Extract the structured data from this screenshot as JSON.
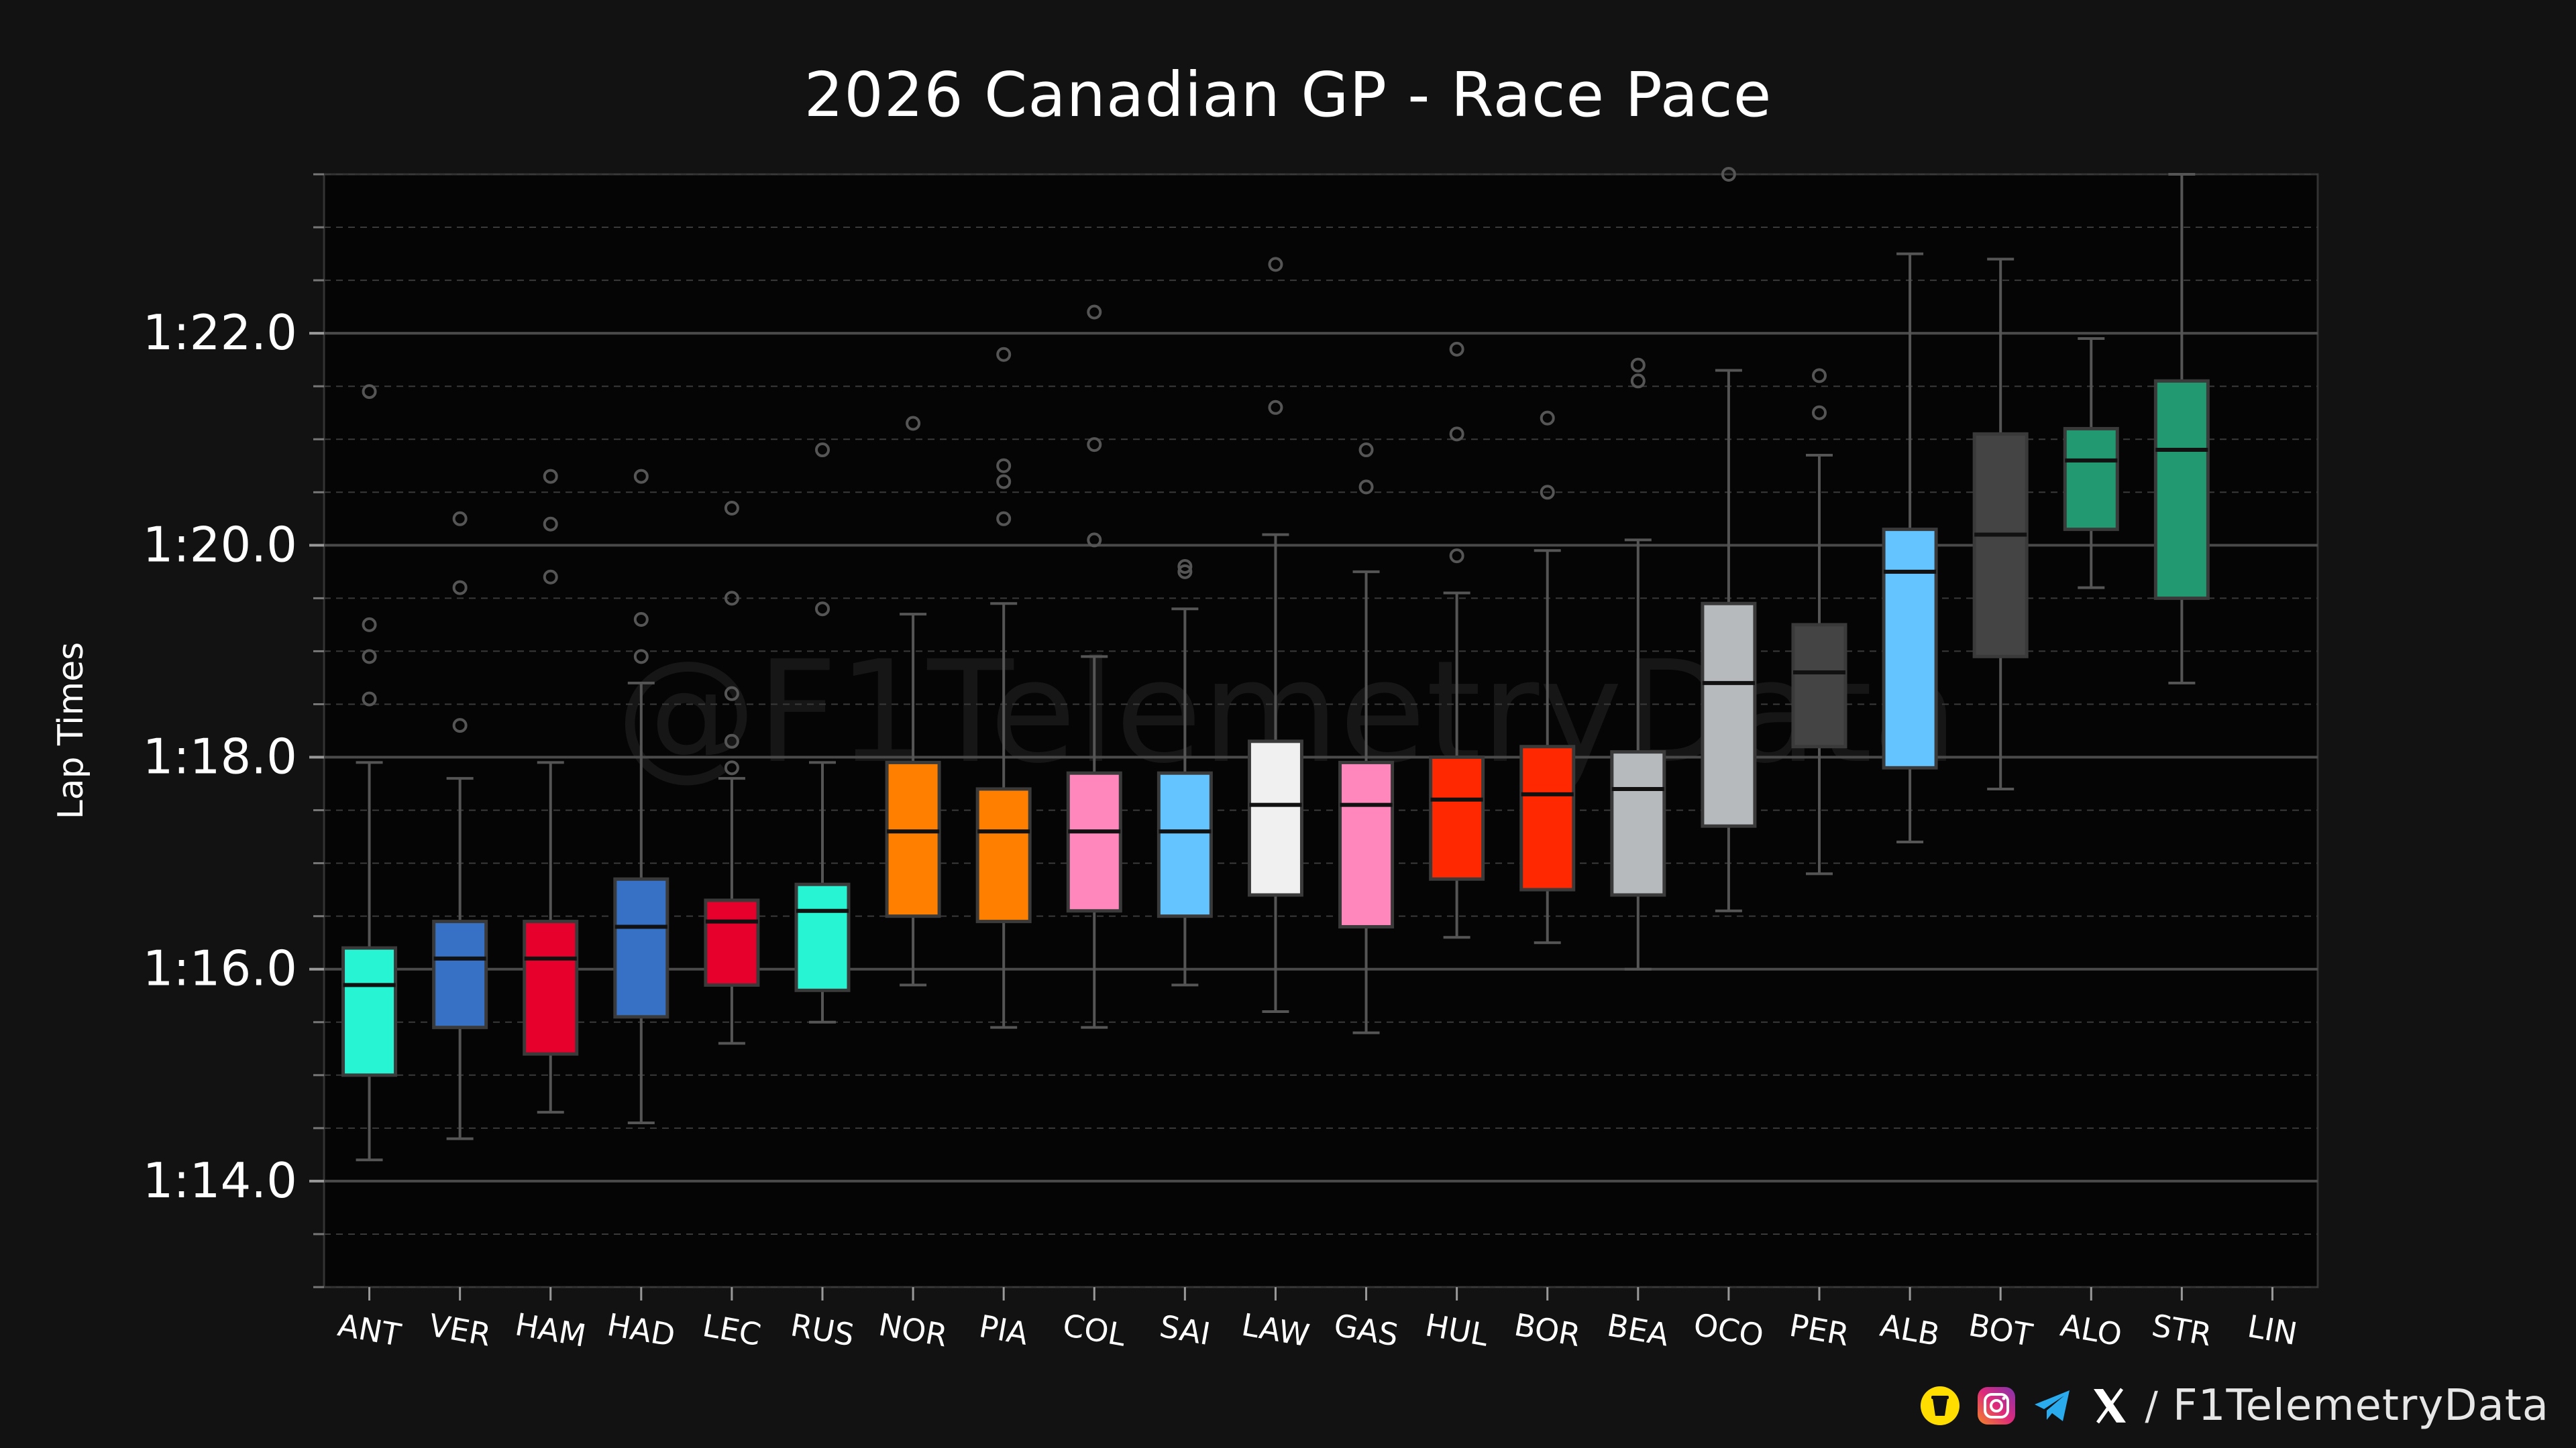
{
  "chart_data": {
    "type": "box",
    "title": "2026 Canadian GP - Race Pace",
    "xlabel": "",
    "ylabel": "Lap Times",
    "ylim": [
      73.0,
      83.5
    ],
    "ytick_values": [
      74,
      76,
      78,
      80,
      82
    ],
    "ytick_labels": [
      "1:14.0",
      "1:16.0",
      "1:18.0",
      "1:20.0",
      "1:22.0"
    ],
    "grid": true,
    "watermark": "@F1TelemetryData",
    "categories": [
      "ANT",
      "VER",
      "HAM",
      "HAD",
      "LEC",
      "RUS",
      "NOR",
      "PIA",
      "COL",
      "SAI",
      "LAW",
      "GAS",
      "HUL",
      "BOR",
      "BEA",
      "OCO",
      "PER",
      "ALB",
      "BOT",
      "ALO",
      "STR",
      "LIN"
    ],
    "boxes": [
      {
        "driver": "ANT",
        "color": "#27F4D2",
        "whislo": 74.2,
        "q1": 75.0,
        "med": 75.85,
        "q3": 76.2,
        "whishi": 77.95,
        "fliers": [
          78.55,
          78.95,
          79.25,
          81.45
        ]
      },
      {
        "driver": "VER",
        "color": "#3671C6",
        "whislo": 74.4,
        "q1": 75.45,
        "med": 76.1,
        "q3": 76.45,
        "whishi": 77.8,
        "fliers": [
          78.3,
          79.6,
          80.25
        ]
      },
      {
        "driver": "HAM",
        "color": "#E8002D",
        "whislo": 74.65,
        "q1": 75.2,
        "med": 76.1,
        "q3": 76.45,
        "whishi": 77.95,
        "fliers": [
          79.7,
          80.2,
          80.65
        ]
      },
      {
        "driver": "HAD",
        "color": "#3671C6",
        "whislo": 74.55,
        "q1": 75.55,
        "med": 76.4,
        "q3": 76.85,
        "whishi": 78.7,
        "fliers": [
          78.95,
          79.3,
          80.65
        ]
      },
      {
        "driver": "LEC",
        "color": "#E8002D",
        "whislo": 75.3,
        "q1": 75.85,
        "med": 76.45,
        "q3": 76.65,
        "whishi": 77.8,
        "fliers": [
          77.9,
          78.15,
          78.6,
          79.5,
          80.35
        ]
      },
      {
        "driver": "RUS",
        "color": "#27F4D2",
        "whislo": 75.5,
        "q1": 75.8,
        "med": 76.55,
        "q3": 76.8,
        "whishi": 77.95,
        "fliers": [
          79.4,
          80.9
        ]
      },
      {
        "driver": "NOR",
        "color": "#FF8000",
        "whislo": 75.85,
        "q1": 76.5,
        "med": 77.3,
        "q3": 77.95,
        "whishi": 79.35,
        "fliers": [
          81.15
        ]
      },
      {
        "driver": "PIA",
        "color": "#FF8000",
        "whislo": 75.45,
        "q1": 76.45,
        "med": 77.3,
        "q3": 77.7,
        "whishi": 79.45,
        "fliers": [
          80.25,
          80.6,
          80.75,
          81.8
        ]
      },
      {
        "driver": "COL",
        "color": "#FF87BC",
        "whislo": 75.45,
        "q1": 76.55,
        "med": 77.3,
        "q3": 77.85,
        "whishi": 78.95,
        "fliers": [
          80.05,
          80.95,
          82.2
        ]
      },
      {
        "driver": "SAI",
        "color": "#64C4FF",
        "whislo": 75.85,
        "q1": 76.5,
        "med": 77.3,
        "q3": 77.85,
        "whishi": 79.4,
        "fliers": [
          79.8,
          79.75
        ]
      },
      {
        "driver": "LAW",
        "color": "#F0F0F0",
        "whislo": 75.6,
        "q1": 76.7,
        "med": 77.55,
        "q3": 78.15,
        "whishi": 80.1,
        "fliers": [
          81.3,
          82.65
        ]
      },
      {
        "driver": "GAS",
        "color": "#FF87BC",
        "whislo": 75.4,
        "q1": 76.4,
        "med": 77.55,
        "q3": 77.95,
        "whishi": 79.75,
        "fliers": [
          80.55,
          80.9
        ]
      },
      {
        "driver": "HUL",
        "color": "#FF2800",
        "whislo": 76.3,
        "q1": 76.85,
        "med": 77.6,
        "q3": 78.0,
        "whishi": 79.55,
        "fliers": [
          79.9,
          81.05,
          81.85
        ]
      },
      {
        "driver": "BOR",
        "color": "#FF2800",
        "whislo": 76.25,
        "q1": 76.75,
        "med": 77.65,
        "q3": 78.1,
        "whishi": 79.95,
        "fliers": [
          80.5,
          81.2
        ]
      },
      {
        "driver": "BEA",
        "color": "#B6BABD",
        "whislo": 76.0,
        "q1": 76.7,
        "med": 77.7,
        "q3": 78.05,
        "whishi": 80.05,
        "fliers": [
          81.55,
          81.7
        ]
      },
      {
        "driver": "OCO",
        "color": "#B6BABD",
        "whislo": 76.55,
        "q1": 77.35,
        "med": 78.7,
        "q3": 79.45,
        "whishi": 81.65,
        "fliers": [
          83.5
        ]
      },
      {
        "driver": "PER",
        "color": "#444444",
        "whislo": 76.9,
        "q1": 78.1,
        "med": 78.8,
        "q3": 79.25,
        "whishi": 80.85,
        "fliers": [
          81.25,
          81.6
        ]
      },
      {
        "driver": "ALB",
        "color": "#64C4FF",
        "whislo": 77.2,
        "q1": 77.9,
        "med": 79.75,
        "q3": 80.15,
        "whishi": 82.75,
        "fliers": []
      },
      {
        "driver": "BOT",
        "color": "#444444",
        "whislo": 77.7,
        "q1": 78.95,
        "med": 80.1,
        "q3": 81.05,
        "whishi": 82.7,
        "fliers": []
      },
      {
        "driver": "ALO",
        "color": "#229971",
        "whislo": 79.6,
        "q1": 80.15,
        "med": 80.8,
        "q3": 81.1,
        "whishi": 81.95,
        "fliers": []
      },
      {
        "driver": "STR",
        "color": "#229971",
        "whislo": 78.7,
        "q1": 79.5,
        "med": 80.9,
        "q3": 81.55,
        "whishi": 83.5,
        "fliers": []
      },
      {
        "driver": "LIN",
        "color": "#888888",
        "whislo": null,
        "q1": null,
        "med": null,
        "q3": null,
        "whishi": null,
        "fliers": []
      }
    ]
  },
  "footer": {
    "separator": "/",
    "handle": "F1TelemetryData",
    "icons": [
      "buymeacoffee-icon",
      "instagram-icon",
      "telegram-icon",
      "x-icon"
    ]
  }
}
